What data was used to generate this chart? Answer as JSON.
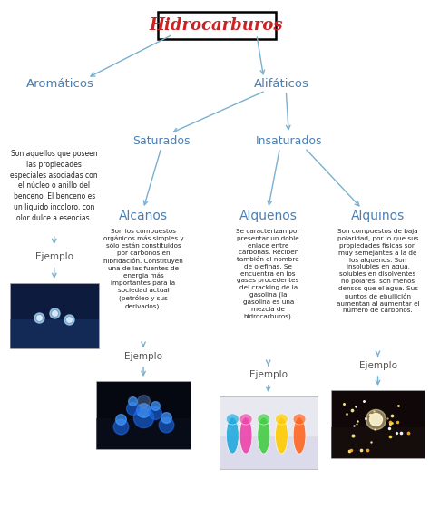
{
  "title": "Hidrocarburos",
  "title_color": "#cc2222",
  "title_fontsize": 13,
  "bg_color": "#ffffff",
  "node_color": "#4a7fb5",
  "arrow_color": "#7ab0d0",
  "arom_desc": "Son aquellos que poseen\nlas propiedades\nespeciales asociadas con\nel núcleo o anillo del\nbenceno. El benceno es\nun liquido incoloro, con\nolor dulce a esencias.",
  "alcanos_desc": "Son los compuestos\norgánicos más simples y\nsólo están constituidos\npor carbonos en\nhibridación. Constituyen\nuna de las fuentes de\nenergia más\nimportantes para la\nsociedad actual\n(petróleo y sus\nderivados).",
  "alquenos_desc": "Se caracterizan por\npresentar un doble\nenlace entre\ncarbonas. Reciben\ntambién el nombre\nde olefinas. Se\nencuentra en los\ngases procedentes\ndel cracking de la\ngasolina (la\ngasolina es una\nmezcla de\nhidrocarburos).",
  "alquinos_desc": "Son compuestos de baja\npolaridad, por lo que sus\npropiedades físicas son\nmuy semejantes a la de\nlos alquenos. Son\ninsolubles en agua,\nsolubles en disolventes\nno polares, son menos\ndensos que el agua. Sus\npuntos de ebullición\naumentan al aumentar el\nnúmero de carbonos."
}
